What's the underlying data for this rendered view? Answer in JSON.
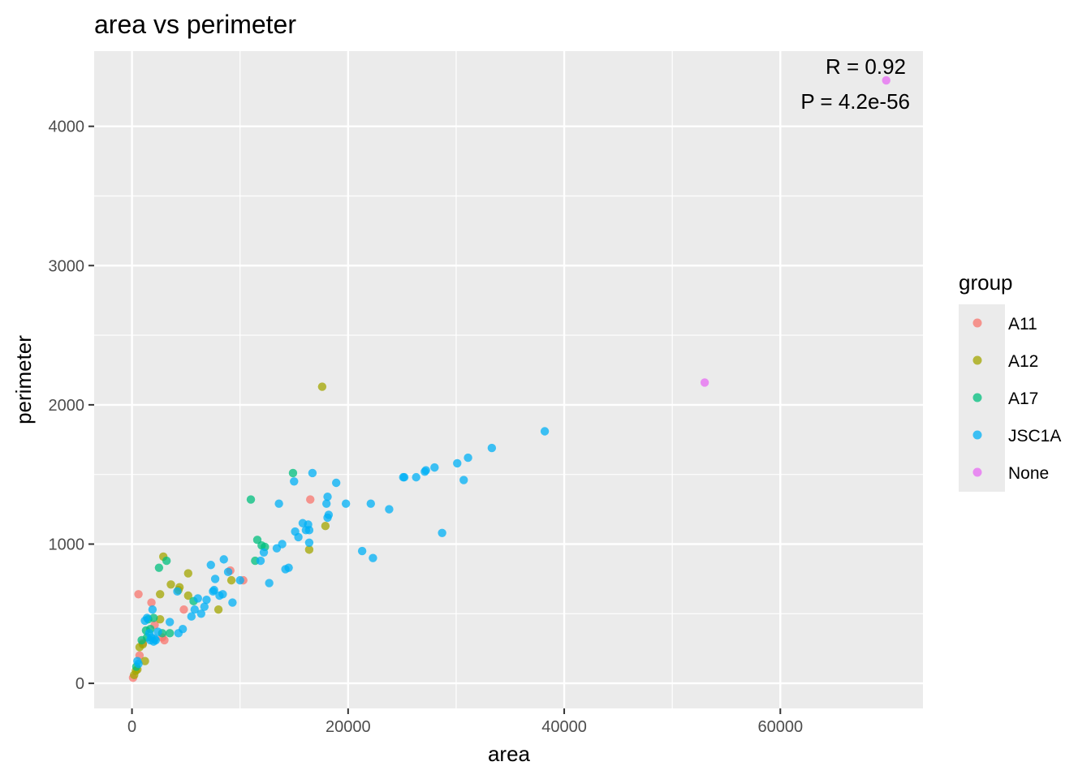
{
  "chart_data": {
    "type": "scatter",
    "title": "area vs perimeter",
    "xlabel": "area",
    "ylabel": "perimeter",
    "xlim": [
      -3500,
      73200
    ],
    "ylim": [
      -180,
      4540
    ],
    "x_ticks": [
      0,
      20000,
      40000,
      60000
    ],
    "y_ticks": [
      0,
      1000,
      2000,
      3000,
      4000
    ],
    "grid": true,
    "legend": {
      "title": "group",
      "placement": "right"
    },
    "annotations": [
      "R = 0.92",
      "P = 4.2e-56"
    ],
    "series": [
      {
        "name": "A11",
        "color": "#F8766D",
        "points": [
          [
            100,
            40
          ],
          [
            600,
            640
          ],
          [
            700,
            200
          ],
          [
            1000,
            290
          ],
          [
            1800,
            580
          ],
          [
            2100,
            420
          ],
          [
            2800,
            330
          ],
          [
            3000,
            310
          ],
          [
            4800,
            530
          ],
          [
            9100,
            810
          ],
          [
            10300,
            740
          ],
          [
            16500,
            1320
          ]
        ]
      },
      {
        "name": "A12",
        "color": "#A3A500",
        "points": [
          [
            200,
            60
          ],
          [
            350,
            90
          ],
          [
            500,
            100
          ],
          [
            700,
            260
          ],
          [
            1000,
            280
          ],
          [
            1200,
            160
          ],
          [
            2600,
            460
          ],
          [
            2600,
            640
          ],
          [
            2900,
            910
          ],
          [
            3600,
            710
          ],
          [
            4300,
            670
          ],
          [
            4400,
            690
          ],
          [
            5200,
            630
          ],
          [
            5200,
            790
          ],
          [
            8000,
            530
          ],
          [
            9200,
            740
          ],
          [
            16400,
            960
          ],
          [
            17600,
            2130
          ],
          [
            17900,
            1130
          ]
        ]
      },
      {
        "name": "A17",
        "color": "#00BF7D",
        "points": [
          [
            400,
            120
          ],
          [
            900,
            310
          ],
          [
            1300,
            380
          ],
          [
            1400,
            330
          ],
          [
            1500,
            460
          ],
          [
            1700,
            390
          ],
          [
            2000,
            470
          ],
          [
            2500,
            830
          ],
          [
            2800,
            360
          ],
          [
            3200,
            880
          ],
          [
            3500,
            360
          ],
          [
            5700,
            590
          ],
          [
            11000,
            1320
          ],
          [
            11400,
            880
          ],
          [
            11600,
            1030
          ],
          [
            12000,
            990
          ],
          [
            12300,
            980
          ],
          [
            14900,
            1510
          ]
        ]
      },
      {
        "name": "JSC1A",
        "color": "#00B0F6",
        "points": [
          [
            500,
            160
          ],
          [
            600,
            140
          ],
          [
            1200,
            450
          ],
          [
            1400,
            470
          ],
          [
            1600,
            360
          ],
          [
            1700,
            310
          ],
          [
            1800,
            330
          ],
          [
            1900,
            530
          ],
          [
            2000,
            300
          ],
          [
            2100,
            320
          ],
          [
            2200,
            310
          ],
          [
            2400,
            370
          ],
          [
            3500,
            440
          ],
          [
            4200,
            660
          ],
          [
            4300,
            360
          ],
          [
            4700,
            390
          ],
          [
            5500,
            480
          ],
          [
            5800,
            530
          ],
          [
            6100,
            610
          ],
          [
            6400,
            500
          ],
          [
            6700,
            550
          ],
          [
            6900,
            600
          ],
          [
            7300,
            850
          ],
          [
            7500,
            660
          ],
          [
            7600,
            670
          ],
          [
            7700,
            750
          ],
          [
            8100,
            630
          ],
          [
            8400,
            640
          ],
          [
            8500,
            890
          ],
          [
            8900,
            800
          ],
          [
            9300,
            580
          ],
          [
            10000,
            740
          ],
          [
            11900,
            880
          ],
          [
            12200,
            940
          ],
          [
            12700,
            720
          ],
          [
            13400,
            970
          ],
          [
            13600,
            1290
          ],
          [
            13900,
            1000
          ],
          [
            14200,
            820
          ],
          [
            14500,
            830
          ],
          [
            15000,
            1450
          ],
          [
            15100,
            1090
          ],
          [
            15400,
            1050
          ],
          [
            15800,
            1150
          ],
          [
            16100,
            1100
          ],
          [
            16300,
            1140
          ],
          [
            16400,
            1010
          ],
          [
            16400,
            1100
          ],
          [
            16700,
            1510
          ],
          [
            18000,
            1290
          ],
          [
            18100,
            1340
          ],
          [
            18100,
            1190
          ],
          [
            18200,
            1210
          ],
          [
            18900,
            1440
          ],
          [
            19800,
            1290
          ],
          [
            21300,
            950
          ],
          [
            22100,
            1290
          ],
          [
            22300,
            900
          ],
          [
            23800,
            1250
          ],
          [
            25100,
            1480
          ],
          [
            25200,
            1480
          ],
          [
            26300,
            1480
          ],
          [
            27100,
            1520
          ],
          [
            27200,
            1530
          ],
          [
            28000,
            1550
          ],
          [
            28700,
            1080
          ],
          [
            30100,
            1580
          ],
          [
            30700,
            1460
          ],
          [
            31100,
            1620
          ],
          [
            33300,
            1690
          ],
          [
            38200,
            1810
          ]
        ]
      },
      {
        "name": "None",
        "color": "#E76BF3",
        "points": [
          [
            53000,
            2160
          ],
          [
            69800,
            4330
          ]
        ]
      }
    ]
  }
}
